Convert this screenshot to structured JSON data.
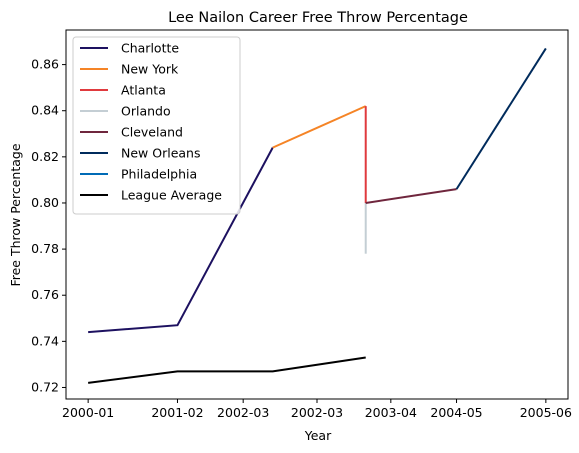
{
  "chart_data": {
    "type": "line",
    "title": "Lee Nailon Career Free Throw Percentage",
    "xlabel": "Year",
    "ylabel": "Free Throw Percentage",
    "x_tick_labels": [
      "2000-01",
      "2001-02",
      "2002-03",
      "2002-03",
      "2003-04",
      "2004-05",
      "2005-06"
    ],
    "y_ticks": [
      0.72,
      0.74,
      0.76,
      0.78,
      0.8,
      0.82,
      0.84,
      0.86
    ],
    "ylim": [
      0.715,
      0.875
    ],
    "grid": false,
    "legend_position": "top-left",
    "series": [
      {
        "name": "Charlotte",
        "color": "#1d1160",
        "points": [
          {
            "x": "2000-01",
            "y": 0.744
          },
          {
            "x": "2001-02",
            "y": 0.747
          },
          {
            "x": "2002-03",
            "y": 0.824
          }
        ]
      },
      {
        "name": "New York",
        "color": "#f58426",
        "points": [
          {
            "x": "2002-03",
            "y": 0.824
          },
          {
            "x": "2003-04",
            "y": 0.842
          }
        ]
      },
      {
        "name": "Atlanta",
        "color": "#e03a3e",
        "points": [
          {
            "x": "2003-04",
            "y": 0.842
          },
          {
            "x": "2003-04",
            "y": 0.8
          }
        ]
      },
      {
        "name": "Orlando",
        "color": "#c4ced4",
        "points": [
          {
            "x": "2003-04",
            "y": 0.778
          },
          {
            "x": "2003-04",
            "y": 0.8
          }
        ]
      },
      {
        "name": "Cleveland",
        "color": "#6f263d",
        "points": [
          {
            "x": "2003-04",
            "y": 0.8
          },
          {
            "x": "2004-05",
            "y": 0.806
          }
        ]
      },
      {
        "name": "New Orleans",
        "color": "#002b5c",
        "points": [
          {
            "x": "2004-05",
            "y": 0.806
          },
          {
            "x": "2005-06",
            "y": 0.867
          }
        ]
      },
      {
        "name": "Philadelphia",
        "color": "#006bb6",
        "points": []
      },
      {
        "name": "League Average",
        "color": "#000000",
        "points": [
          {
            "x": "2000-01",
            "y": 0.722
          },
          {
            "x": "2001-02",
            "y": 0.727
          },
          {
            "x": "2002-03",
            "y": 0.727
          },
          {
            "x": "2003-04",
            "y": 0.733
          }
        ]
      }
    ]
  }
}
